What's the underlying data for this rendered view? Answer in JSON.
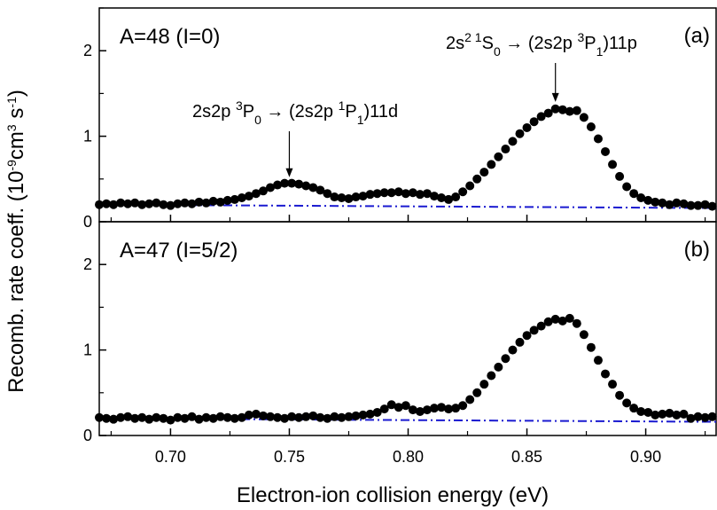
{
  "chart_data": {
    "type": "scatter",
    "xlabel": "Electron-ion collision energy (eV)",
    "ylabel_main": "Recomb. rate coeff. (10",
    "ylabel_exp1": "-9",
    "ylabel_mid": "cm",
    "ylabel_exp2": "3",
    "ylabel_mid2": " s",
    "ylabel_exp3": "-1",
    "ylabel_end": ")",
    "xlim": [
      0.67,
      0.93
    ],
    "x_ticks": [
      "0.70",
      "0.75",
      "0.80",
      "0.85",
      "0.90"
    ],
    "x_tick_values": [
      0.7,
      0.75,
      0.8,
      0.85,
      0.9
    ],
    "marker_color": "#000000",
    "baseline_color": "#1a1ad0",
    "panels": [
      {
        "id": "a",
        "label": "A=48 (I=0)",
        "tag": "(a)",
        "ylim": [
          0,
          2.5
        ],
        "y_ticks": [
          "0",
          "1",
          "2"
        ],
        "y_tick_values": [
          0,
          1,
          2
        ],
        "baseline": {
          "x": [
            0.67,
            0.93
          ],
          "y": [
            0.2,
            0.16
          ]
        },
        "series": {
          "x": [
            0.67,
            0.673,
            0.676,
            0.679,
            0.682,
            0.685,
            0.688,
            0.691,
            0.694,
            0.697,
            0.7,
            0.703,
            0.706,
            0.709,
            0.712,
            0.715,
            0.718,
            0.721,
            0.724,
            0.727,
            0.73,
            0.733,
            0.736,
            0.739,
            0.742,
            0.745,
            0.748,
            0.751,
            0.754,
            0.757,
            0.76,
            0.763,
            0.766,
            0.769,
            0.772,
            0.775,
            0.778,
            0.781,
            0.784,
            0.787,
            0.79,
            0.793,
            0.796,
            0.799,
            0.802,
            0.805,
            0.808,
            0.811,
            0.814,
            0.817,
            0.82,
            0.823,
            0.826,
            0.829,
            0.832,
            0.835,
            0.838,
            0.841,
            0.844,
            0.847,
            0.85,
            0.853,
            0.856,
            0.859,
            0.862,
            0.865,
            0.868,
            0.871,
            0.874,
            0.877,
            0.88,
            0.883,
            0.886,
            0.889,
            0.892,
            0.895,
            0.898,
            0.901,
            0.904,
            0.907,
            0.91,
            0.913,
            0.916,
            0.919,
            0.922,
            0.925,
            0.928
          ],
          "y": [
            0.2,
            0.21,
            0.2,
            0.22,
            0.21,
            0.22,
            0.2,
            0.21,
            0.22,
            0.2,
            0.19,
            0.21,
            0.22,
            0.21,
            0.23,
            0.22,
            0.24,
            0.23,
            0.25,
            0.26,
            0.28,
            0.3,
            0.33,
            0.36,
            0.4,
            0.43,
            0.45,
            0.45,
            0.44,
            0.42,
            0.4,
            0.37,
            0.33,
            0.29,
            0.28,
            0.27,
            0.29,
            0.3,
            0.32,
            0.33,
            0.34,
            0.34,
            0.35,
            0.33,
            0.34,
            0.32,
            0.33,
            0.3,
            0.28,
            0.26,
            0.29,
            0.35,
            0.42,
            0.5,
            0.58,
            0.67,
            0.76,
            0.85,
            0.94,
            1.03,
            1.1,
            1.17,
            1.23,
            1.27,
            1.32,
            1.31,
            1.29,
            1.3,
            1.22,
            1.11,
            0.97,
            0.82,
            0.67,
            0.53,
            0.41,
            0.33,
            0.28,
            0.25,
            0.23,
            0.22,
            0.2,
            0.22,
            0.21,
            0.19,
            0.19,
            0.2,
            0.18
          ]
        },
        "annotations": [
          {
            "base": "2s2p ",
            "sup1": "3",
            "mid": "P",
            "sub1": "0",
            "arrow": " → (2s2p ",
            "sup2": "1",
            "mid2": "P",
            "sub2": "1",
            "end": ")11d",
            "x": 0.75,
            "target_y": 0.48
          },
          {
            "base": "2s",
            "sup1": "2 1",
            "mid": "S",
            "sub1": "0",
            "arrow": " → (2s2p ",
            "sup2": "3",
            "mid2": "P",
            "sub2": "1",
            "end": ")11p",
            "x": 0.862,
            "target_y": 1.36
          }
        ]
      },
      {
        "id": "b",
        "label": "A=47 (I=5/2)",
        "tag": "(b)",
        "ylim": [
          0,
          2.5
        ],
        "y_ticks": [
          "0",
          "1",
          "2"
        ],
        "y_tick_values": [
          0,
          1,
          2
        ],
        "baseline": {
          "x": [
            0.67,
            0.93
          ],
          "y": [
            0.2,
            0.16
          ]
        },
        "series": {
          "x": [
            0.67,
            0.673,
            0.676,
            0.679,
            0.682,
            0.685,
            0.688,
            0.691,
            0.694,
            0.697,
            0.7,
            0.703,
            0.706,
            0.709,
            0.712,
            0.715,
            0.718,
            0.721,
            0.724,
            0.727,
            0.73,
            0.733,
            0.736,
            0.739,
            0.742,
            0.745,
            0.748,
            0.751,
            0.754,
            0.757,
            0.76,
            0.763,
            0.766,
            0.769,
            0.772,
            0.775,
            0.778,
            0.781,
            0.784,
            0.787,
            0.79,
            0.793,
            0.796,
            0.799,
            0.802,
            0.805,
            0.808,
            0.811,
            0.814,
            0.817,
            0.82,
            0.823,
            0.826,
            0.829,
            0.832,
            0.835,
            0.838,
            0.841,
            0.844,
            0.847,
            0.85,
            0.853,
            0.856,
            0.859,
            0.862,
            0.865,
            0.868,
            0.871,
            0.874,
            0.877,
            0.88,
            0.883,
            0.886,
            0.889,
            0.892,
            0.895,
            0.898,
            0.901,
            0.904,
            0.907,
            0.91,
            0.913,
            0.916,
            0.919,
            0.922,
            0.925,
            0.928
          ],
          "y": [
            0.21,
            0.2,
            0.19,
            0.21,
            0.22,
            0.2,
            0.21,
            0.19,
            0.21,
            0.2,
            0.18,
            0.21,
            0.2,
            0.22,
            0.19,
            0.21,
            0.2,
            0.22,
            0.21,
            0.2,
            0.21,
            0.24,
            0.25,
            0.23,
            0.22,
            0.21,
            0.2,
            0.22,
            0.21,
            0.22,
            0.23,
            0.21,
            0.2,
            0.22,
            0.21,
            0.22,
            0.23,
            0.24,
            0.25,
            0.27,
            0.31,
            0.36,
            0.33,
            0.35,
            0.3,
            0.28,
            0.3,
            0.32,
            0.33,
            0.31,
            0.32,
            0.35,
            0.42,
            0.5,
            0.6,
            0.7,
            0.8,
            0.9,
            1.0,
            1.09,
            1.17,
            1.23,
            1.28,
            1.33,
            1.36,
            1.34,
            1.37,
            1.31,
            1.18,
            1.03,
            0.88,
            0.72,
            0.6,
            0.47,
            0.38,
            0.32,
            0.28,
            0.27,
            0.24,
            0.25,
            0.26,
            0.24,
            0.25,
            0.2,
            0.22,
            0.21,
            0.22
          ]
        },
        "annotations": []
      }
    ]
  }
}
